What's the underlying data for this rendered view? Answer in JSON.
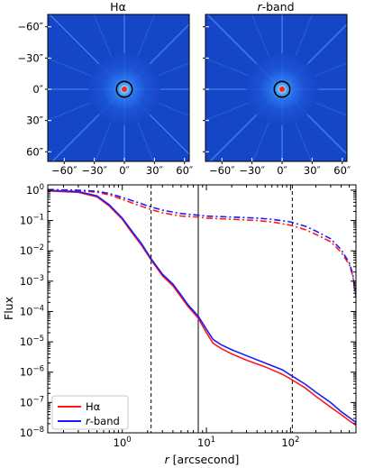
{
  "chart_data": [
    {
      "type": "heatmap",
      "title": "Hα",
      "xticks": [
        "−60″",
        "−30″",
        "0″",
        "30″",
        "60″"
      ],
      "yticks": [
        "60″",
        "30″",
        "0″",
        "−30″",
        "−60″"
      ],
      "tick_values": [
        -60,
        -30,
        0,
        30,
        60
      ],
      "xlim": [
        -72,
        72
      ],
      "ylim": [
        -72,
        72
      ],
      "circle_radius": 8,
      "colors": {
        "background": "#1646c8",
        "core": "#ff2020",
        "circle": "#000000"
      }
    },
    {
      "type": "heatmap",
      "title_italic": "r",
      "title_rest": "-band",
      "xticks": [
        "−60″",
        "−30″",
        "0″",
        "30″",
        "60″"
      ],
      "tick_values": [
        -60,
        -30,
        0,
        30,
        60
      ],
      "xlim": [
        -72,
        72
      ],
      "ylim": [
        -72,
        72
      ],
      "circle_radius": 8,
      "colors": {
        "background": "#1646c8",
        "core": "#ff2020",
        "circle": "#000000"
      }
    },
    {
      "type": "line",
      "xscale": "log",
      "yscale": "log",
      "xlim": [
        0.13,
        600
      ],
      "ylim": [
        1e-08,
        1.5
      ],
      "ylabel": "Flux",
      "xlabel_italic": "r",
      "xlabel_rest": " [arcsecond]",
      "xticks": [
        {
          "value": 1,
          "label": "10",
          "exp": "0"
        },
        {
          "value": 10,
          "label": "10",
          "exp": "1"
        },
        {
          "value": 100,
          "label": "10",
          "exp": "2"
        }
      ],
      "yticks": [
        {
          "value": 1,
          "label": "10",
          "exp": "0"
        },
        {
          "value": 0.1,
          "label": "10",
          "exp": "−1"
        },
        {
          "value": 0.01,
          "label": "10",
          "exp": "−2"
        },
        {
          "value": 0.001,
          "label": "10",
          "exp": "−3"
        },
        {
          "value": 0.0001,
          "label": "10",
          "exp": "−4"
        },
        {
          "value": 1e-05,
          "label": "10",
          "exp": "−5"
        },
        {
          "value": 1e-06,
          "label": "10",
          "exp": "−6"
        },
        {
          "value": 1e-07,
          "label": "10",
          "exp": "−7"
        },
        {
          "value": 1e-08,
          "label": "10",
          "exp": "−8"
        }
      ],
      "vlines": [
        {
          "x": 2.2,
          "style": "dashed"
        },
        {
          "x": 8,
          "style": "solid"
        },
        {
          "x": 105,
          "style": "dashed"
        }
      ],
      "legend_position": "lower-left",
      "legend": [
        {
          "label": "Hα",
          "color": "#ff1a1a"
        },
        {
          "label_italic": "r",
          "label_rest": "-band",
          "color": "#1a1aff"
        }
      ],
      "series": [
        {
          "color": "#ff1a1a",
          "style": "solid",
          "x": [
            0.13,
            0.3,
            0.5,
            0.7,
            1.0,
            1.3,
            1.7,
            2.2,
            3,
            4,
            5,
            6,
            8,
            10,
            12,
            15,
            20,
            30,
            50,
            80,
            100,
            150,
            200,
            300,
            400,
            500,
            600
          ],
          "y": [
            0.95,
            0.85,
            0.6,
            0.3,
            0.11,
            0.04,
            0.015,
            0.005,
            0.0015,
            0.0007,
            0.0003,
            0.00015,
            6e-05,
            2e-05,
            9e-06,
            6e-06,
            4e-06,
            2.5e-06,
            1.5e-06,
            8.5e-07,
            6e-07,
            3e-07,
            1.6e-07,
            7e-08,
            4e-08,
            2.5e-08,
            1.8e-08
          ]
        },
        {
          "color": "#1a1aff",
          "style": "solid",
          "x": [
            0.13,
            0.3,
            0.5,
            0.7,
            1.0,
            1.3,
            1.7,
            2.2,
            3,
            4,
            5,
            6,
            8,
            10,
            12,
            15,
            20,
            30,
            50,
            80,
            100,
            150,
            200,
            300,
            400,
            500,
            600
          ],
          "y": [
            0.98,
            0.9,
            0.65,
            0.33,
            0.12,
            0.045,
            0.017,
            0.0055,
            0.0017,
            0.0008,
            0.00035,
            0.00017,
            7e-05,
            2.6e-05,
            1.2e-05,
            8e-06,
            5.5e-06,
            3.5e-06,
            2e-06,
            1.2e-06,
            8e-07,
            4e-07,
            2.2e-07,
            1e-07,
            5e-08,
            3.2e-08,
            2.2e-08
          ]
        },
        {
          "color": "#ff1a1a",
          "style": "dashdot",
          "x": [
            0.13,
            0.3,
            0.5,
            0.7,
            1.0,
            1.5,
            2.2,
            3,
            5,
            8,
            10,
            20,
            40,
            60,
            100,
            150,
            200,
            300,
            400,
            500,
            550,
            600
          ],
          "y": [
            1.0,
            0.98,
            0.85,
            0.7,
            0.5,
            0.33,
            0.23,
            0.18,
            0.14,
            0.13,
            0.12,
            0.11,
            0.1,
            0.09,
            0.07,
            0.05,
            0.035,
            0.02,
            0.009,
            0.0035,
            0.0015,
            0.0003
          ]
        },
        {
          "color": "#1a1aff",
          "style": "dashdot",
          "x": [
            0.13,
            0.3,
            0.5,
            0.7,
            1.0,
            1.5,
            2.2,
            3,
            5,
            8,
            10,
            20,
            40,
            60,
            100,
            150,
            200,
            300,
            400,
            500,
            550,
            600
          ],
          "y": [
            1.05,
            1.0,
            0.92,
            0.78,
            0.58,
            0.4,
            0.28,
            0.22,
            0.17,
            0.15,
            0.14,
            0.13,
            0.12,
            0.11,
            0.09,
            0.065,
            0.045,
            0.025,
            0.011,
            0.004,
            0.0017,
            0.0003
          ]
        }
      ]
    }
  ]
}
